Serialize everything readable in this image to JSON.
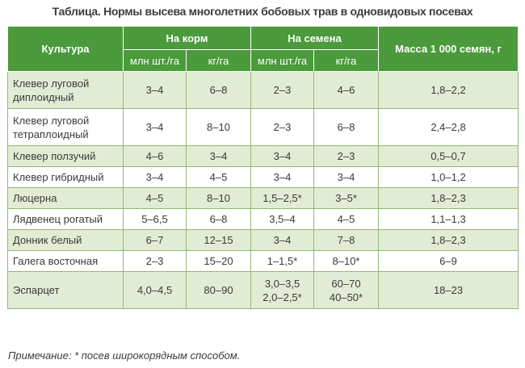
{
  "title": "Таблица. Нормы высева многолетних бобовых трав в одновидовых посевах",
  "table": {
    "headers": {
      "crop": "Культура",
      "feed": "На корм",
      "seeds": "На семена",
      "mass": "Масса 1 000 семян, г",
      "feed_mln": "млн шт./га",
      "feed_kg": "кг/га",
      "seed_mln": "млн шт./га",
      "seed_kg": "кг/га"
    },
    "rows": [
      {
        "crop": [
          "Клевер луговой",
          "диплоидный"
        ],
        "feed_mln": "3–4",
        "feed_kg": "6–8",
        "seed_mln": [
          "2–3"
        ],
        "seed_kg": [
          "4–6"
        ],
        "mass": "1,8–2,2"
      },
      {
        "crop": [
          "Клевер луговой",
          "тетраплоидный"
        ],
        "feed_mln": "3–4",
        "feed_kg": "8–10",
        "seed_mln": [
          "2–3"
        ],
        "seed_kg": [
          "6–8"
        ],
        "mass": "2,4–2,8"
      },
      {
        "crop": [
          "Клевер ползучий"
        ],
        "feed_mln": "4–6",
        "feed_kg": "3–4",
        "seed_mln": [
          "3–4"
        ],
        "seed_kg": [
          "2–3"
        ],
        "mass": "0,5–0,7"
      },
      {
        "crop": [
          "Клевер гибридный"
        ],
        "feed_mln": "3–4",
        "feed_kg": "4–5",
        "seed_mln": [
          "3–4"
        ],
        "seed_kg": [
          "3–4"
        ],
        "mass": "1,0–1,2"
      },
      {
        "crop": [
          "Люцерна"
        ],
        "feed_mln": "4–5",
        "feed_kg": "8–10",
        "seed_mln": [
          "1,5–2,5*"
        ],
        "seed_kg": [
          "3–5*"
        ],
        "mass": "1,8–2,3"
      },
      {
        "crop": [
          "Лядвенец рогатый"
        ],
        "feed_mln": "5–6,5",
        "feed_kg": "6–8",
        "seed_mln": [
          "3,5–4"
        ],
        "seed_kg": [
          "4–5"
        ],
        "mass": "1,1–1,3"
      },
      {
        "crop": [
          "Донник белый"
        ],
        "feed_mln": "6–7",
        "feed_kg": "12–15",
        "seed_mln": [
          "3–4"
        ],
        "seed_kg": [
          "7–8"
        ],
        "mass": "1,8–2,3"
      },
      {
        "crop": [
          "Галега восточная"
        ],
        "feed_mln": "2–3",
        "feed_kg": "15–20",
        "seed_mln": [
          "1–1,5*"
        ],
        "seed_kg": [
          "8–10*"
        ],
        "mass": "6–9"
      },
      {
        "crop": [
          "Эспарцет"
        ],
        "feed_mln": "4,0–4,5",
        "feed_kg": "80–90",
        "seed_mln": [
          "3,0–3,5",
          "2,0–2,5*"
        ],
        "seed_kg": [
          "60–70",
          "40–50*"
        ],
        "mass": "18–23"
      }
    ]
  },
  "note": "Примечание: * посев широкорядным способом.",
  "colors": {
    "header_bg": "#4b9a3b",
    "row_tint": "#e2ecd4",
    "border": "#8fba74"
  }
}
